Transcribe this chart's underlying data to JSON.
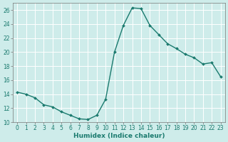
{
  "x": [
    0,
    1,
    2,
    3,
    4,
    5,
    6,
    7,
    8,
    9,
    10,
    11,
    12,
    13,
    14,
    15,
    16,
    17,
    18,
    19,
    20,
    21,
    22,
    23
  ],
  "y": [
    14.3,
    14.0,
    13.5,
    12.5,
    12.2,
    11.5,
    11.0,
    10.5,
    10.4,
    11.0,
    13.3,
    20.0,
    23.8,
    26.3,
    26.2,
    23.8,
    22.5,
    21.2,
    20.5,
    19.7,
    19.2,
    18.3,
    18.5,
    16.5
  ],
  "line_color": "#1a7a6e",
  "marker": "D",
  "marker_size": 2.0,
  "bg_color": "#ceecea",
  "grid_color": "#ffffff",
  "xlabel": "Humidex (Indice chaleur)",
  "ylabel": "",
  "ylim": [
    10,
    27
  ],
  "xlim": [
    -0.5,
    23.5
  ],
  "yticks": [
    10,
    12,
    14,
    16,
    18,
    20,
    22,
    24,
    26
  ],
  "xticks": [
    0,
    1,
    2,
    3,
    4,
    5,
    6,
    7,
    8,
    9,
    10,
    11,
    12,
    13,
    14,
    15,
    16,
    17,
    18,
    19,
    20,
    21,
    22,
    23
  ],
  "tick_label_fontsize": 5.5,
  "xlabel_fontsize": 6.5,
  "xlabel_color": "#1a7a6e",
  "tick_color": "#1a7a6e",
  "line_width": 1.0
}
